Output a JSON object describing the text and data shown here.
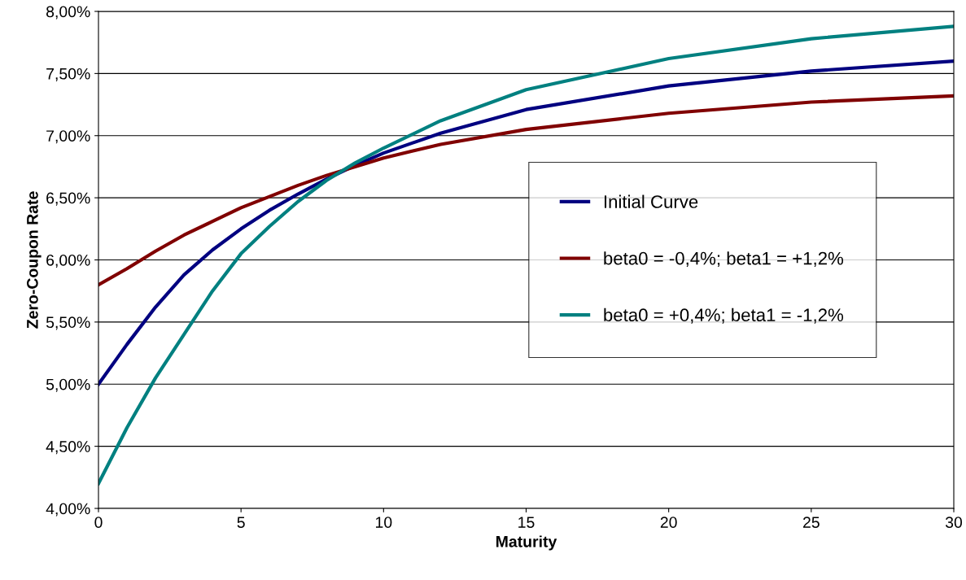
{
  "chart_data": {
    "type": "line",
    "xlabel": "Maturity",
    "ylabel": "Zero-Coupon Rate",
    "x": [
      0,
      1,
      2,
      3,
      4,
      5,
      6,
      7,
      8,
      9,
      10,
      12,
      15,
      20,
      25,
      30
    ],
    "series": [
      {
        "name": "Initial Curve",
        "color": "#000080",
        "values": [
          5.0,
          5.32,
          5.62,
          5.88,
          6.08,
          6.25,
          6.4,
          6.53,
          6.65,
          6.76,
          6.86,
          7.02,
          7.21,
          7.4,
          7.52,
          7.6
        ]
      },
      {
        "name": "beta0 = -0,4%; beta1 = +1,2%",
        "color": "#800000",
        "values": [
          5.8,
          5.93,
          6.07,
          6.2,
          6.31,
          6.42,
          6.51,
          6.6,
          6.68,
          6.75,
          6.82,
          6.93,
          7.05,
          7.18,
          7.27,
          7.32
        ]
      },
      {
        "name": "beta0 = +0,4%; beta1 = -1,2%",
        "color": "#008080",
        "values": [
          4.2,
          4.65,
          5.05,
          5.4,
          5.75,
          6.05,
          6.27,
          6.47,
          6.64,
          6.78,
          6.9,
          7.12,
          7.37,
          7.62,
          7.78,
          7.88
        ]
      }
    ],
    "xlim": [
      0,
      30
    ],
    "xticks": [
      0,
      5,
      10,
      15,
      20,
      25,
      30
    ],
    "ylim": [
      4,
      8
    ],
    "yticks": [
      {
        "value": 4,
        "label": "4,00%"
      },
      {
        "value": 4.5,
        "label": "4,50%"
      },
      {
        "value": 5,
        "label": "5,00%"
      },
      {
        "value": 5.5,
        "label": "5,50%"
      },
      {
        "value": 6,
        "label": "6,00%"
      },
      {
        "value": 6.5,
        "label": "6,50%"
      },
      {
        "value": 7,
        "label": "7,00%"
      },
      {
        "value": 7.5,
        "label": "7,50%"
      },
      {
        "value": 8,
        "label": "8,00%"
      }
    ],
    "grid": "y",
    "legend": "right",
    "marker": "none",
    "line_style": "solid"
  }
}
